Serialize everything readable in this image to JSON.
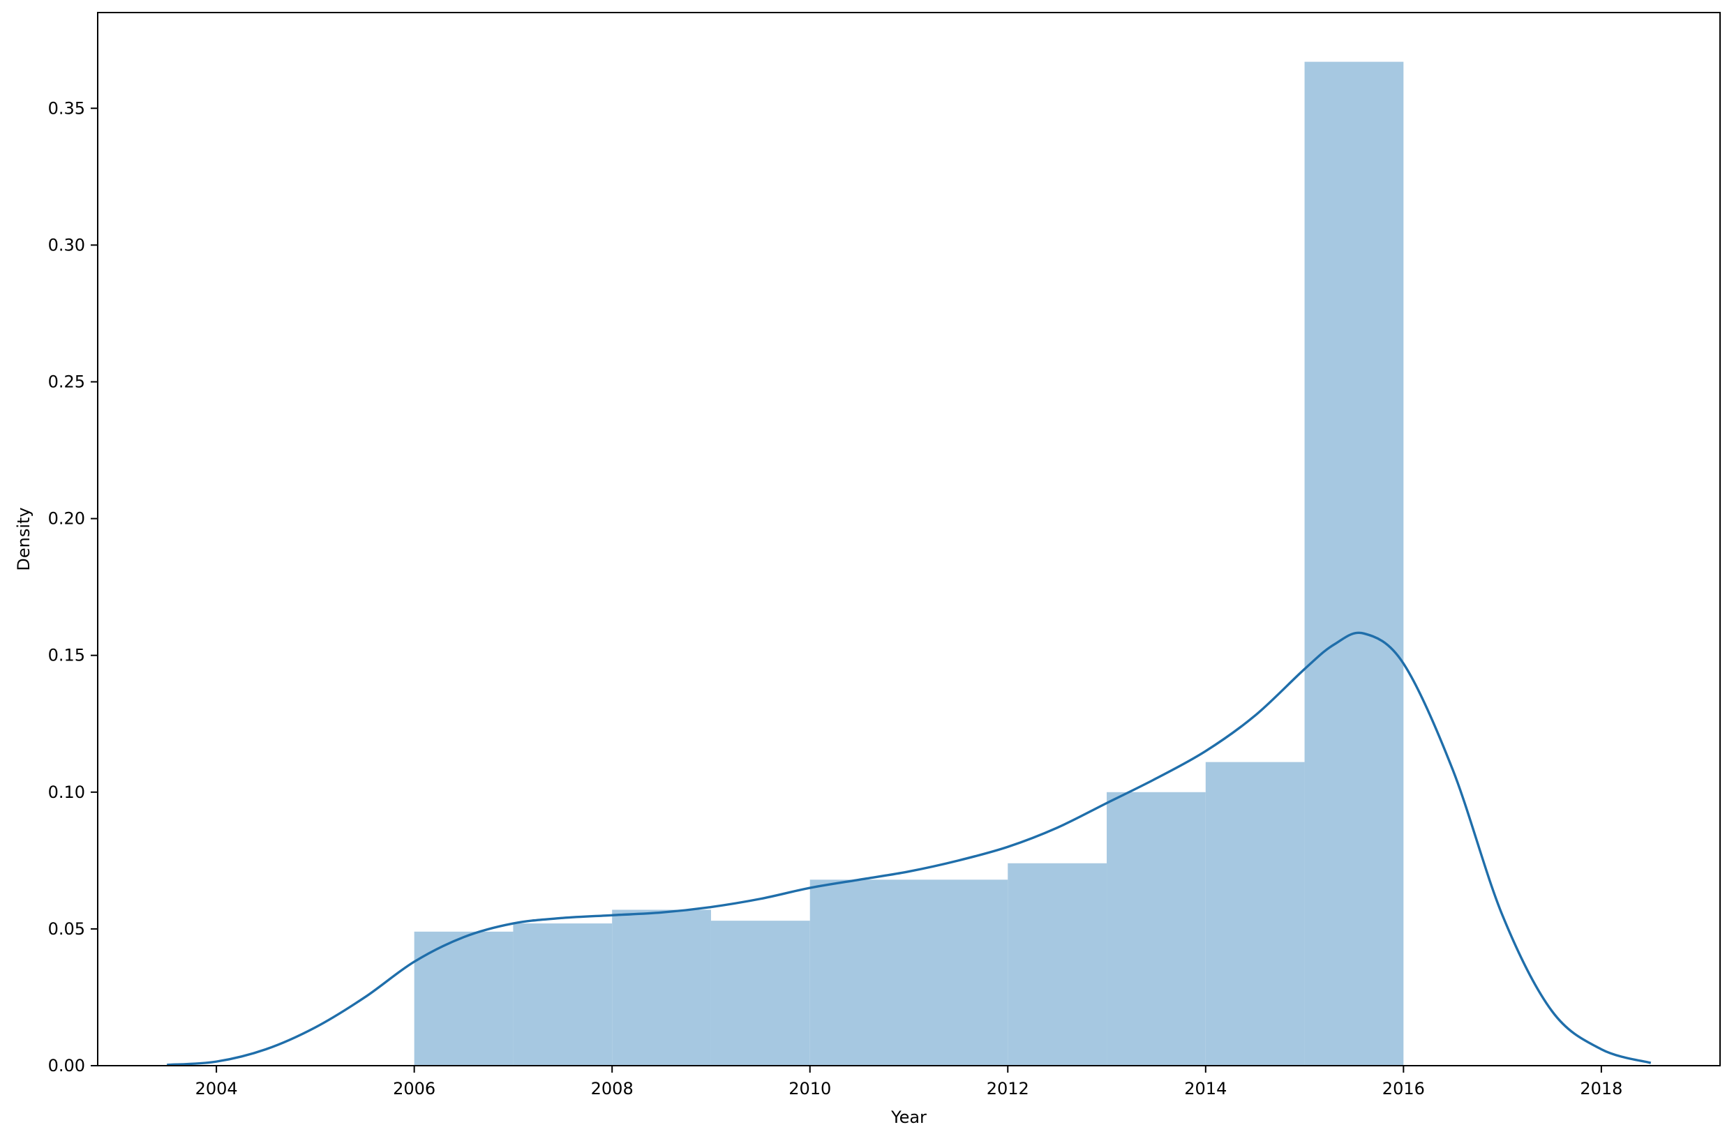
{
  "chart_data": {
    "type": "histogram",
    "title": "",
    "xlabel": "Year",
    "ylabel": "Density",
    "xlim": [
      2002.8,
      2019.2
    ],
    "ylim": [
      0,
      0.385
    ],
    "xticks": [
      2004,
      2006,
      2008,
      2010,
      2012,
      2014,
      2016,
      2018
    ],
    "yticks": [
      0.0,
      0.05,
      0.1,
      0.15,
      0.2,
      0.25,
      0.3,
      0.35
    ],
    "bins": [
      {
        "x0": 2006,
        "x1": 2007,
        "density": 0.049
      },
      {
        "x0": 2007,
        "x1": 2008,
        "density": 0.052
      },
      {
        "x0": 2008,
        "x1": 2009,
        "density": 0.057
      },
      {
        "x0": 2009,
        "x1": 2010,
        "density": 0.053
      },
      {
        "x0": 2010,
        "x1": 2011,
        "density": 0.068
      },
      {
        "x0": 2011,
        "x1": 2012,
        "density": 0.068
      },
      {
        "x0": 2012,
        "x1": 2013,
        "density": 0.074
      },
      {
        "x0": 2013,
        "x1": 2014,
        "density": 0.1
      },
      {
        "x0": 2014,
        "x1": 2015,
        "density": 0.111
      },
      {
        "x0": 2015,
        "x1": 2016,
        "density": 0.367
      }
    ],
    "kde": {
      "x": [
        2003.5,
        2004.0,
        2004.5,
        2005.0,
        2005.5,
        2006.0,
        2006.5,
        2007.0,
        2007.5,
        2008.0,
        2008.5,
        2009.0,
        2009.5,
        2010.0,
        2010.5,
        2011.0,
        2011.5,
        2012.0,
        2012.5,
        2013.0,
        2013.5,
        2014.0,
        2014.5,
        2015.0,
        2015.3,
        2015.6,
        2016.0,
        2016.5,
        2017.0,
        2017.5,
        2018.0,
        2018.5
      ],
      "y": [
        0.0003,
        0.0015,
        0.006,
        0.014,
        0.025,
        0.038,
        0.047,
        0.052,
        0.054,
        0.055,
        0.056,
        0.058,
        0.061,
        0.065,
        0.068,
        0.071,
        0.075,
        0.08,
        0.087,
        0.096,
        0.105,
        0.115,
        0.128,
        0.145,
        0.154,
        0.158,
        0.147,
        0.108,
        0.055,
        0.02,
        0.006,
        0.001
      ]
    },
    "bar_color": "#a6c8e1",
    "line_color": "#1f6eaa",
    "grid": false,
    "legend": null
  }
}
